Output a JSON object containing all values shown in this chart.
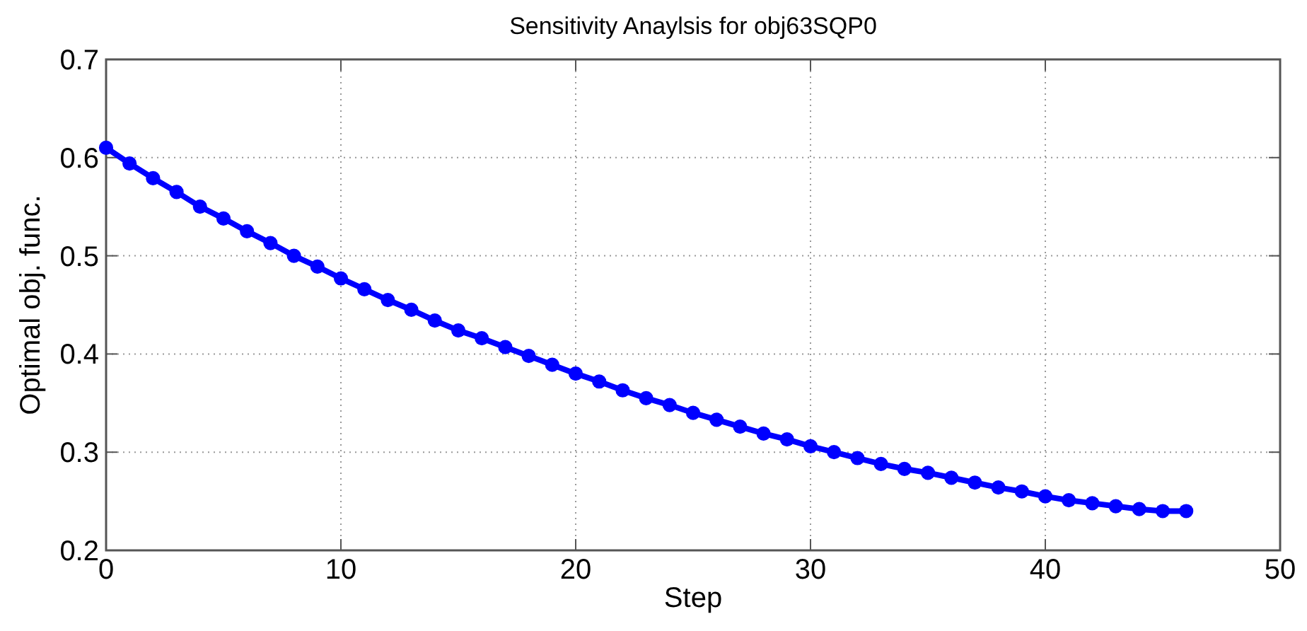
{
  "chart_data": {
    "type": "line",
    "title": "Sensitivity Anaylsis for obj63SQP0",
    "xlabel": "Step",
    "ylabel": "Optimal obj. func.",
    "x": [
      0,
      1,
      2,
      3,
      4,
      5,
      6,
      7,
      8,
      9,
      10,
      11,
      12,
      13,
      14,
      15,
      16,
      17,
      18,
      19,
      20,
      21,
      22,
      23,
      24,
      25,
      26,
      27,
      28,
      29,
      30,
      31,
      32,
      33,
      34,
      35,
      36,
      37,
      38,
      39,
      40,
      41,
      42,
      43,
      44,
      45,
      46
    ],
    "series": [
      {
        "color": "#0000ff",
        "values": [
          0.61,
          0.594,
          0.579,
          0.565,
          0.55,
          0.538,
          0.525,
          0.513,
          0.5,
          0.489,
          0.477,
          0.466,
          0.455,
          0.445,
          0.434,
          0.424,
          0.416,
          0.407,
          0.398,
          0.389,
          0.38,
          0.372,
          0.363,
          0.355,
          0.348,
          0.34,
          0.333,
          0.326,
          0.319,
          0.313,
          0.306,
          0.3,
          0.294,
          0.288,
          0.283,
          0.279,
          0.274,
          0.269,
          0.264,
          0.26,
          0.255,
          0.251,
          0.248,
          0.245,
          0.242,
          0.24,
          0.24
        ]
      }
    ],
    "xlim": [
      0,
      50
    ],
    "xticks": [
      0,
      10,
      20,
      30,
      40,
      50
    ],
    "ylim": [
      0.2,
      0.7
    ],
    "yticks": [
      0.2,
      0.3,
      0.4,
      0.5,
      0.6,
      0.7
    ],
    "grid": true,
    "marker": "circle",
    "line_style": "solid"
  }
}
